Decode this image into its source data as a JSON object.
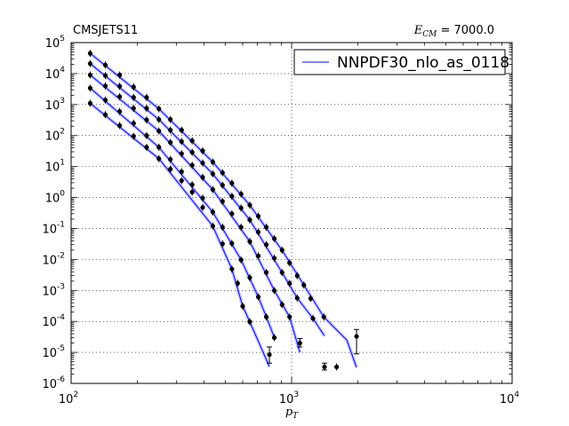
{
  "chart_data": {
    "type": "scatter",
    "title_left": "CMSJETS11",
    "title_right_symbol": "E",
    "title_right_sub": "CM",
    "title_right_value": " = 7000.0",
    "xlabel_symbol": "p",
    "xlabel_sub": "T",
    "ylabel": "",
    "x_scale": "log",
    "y_scale": "log",
    "xlim": [
      100,
      10000
    ],
    "ylim": [
      1e-06,
      100000
    ],
    "x_ticks": [
      {
        "base": "10",
        "exp": "2"
      },
      {
        "base": "10",
        "exp": "3"
      },
      {
        "base": "10",
        "exp": "4"
      }
    ],
    "y_ticks": [
      {
        "base": "10",
        "exp": "5"
      },
      {
        "base": "10",
        "exp": "4"
      },
      {
        "base": "10",
        "exp": "3"
      },
      {
        "base": "10",
        "exp": "2"
      },
      {
        "base": "10",
        "exp": "1"
      },
      {
        "base": "10",
        "exp": "0"
      },
      {
        "base": "10",
        "exp": "-1"
      },
      {
        "base": "10",
        "exp": "-2"
      },
      {
        "base": "10",
        "exp": "-3"
      },
      {
        "base": "10",
        "exp": "-4"
      },
      {
        "base": "10",
        "exp": "-5"
      },
      {
        "base": "10",
        "exp": "-6"
      }
    ],
    "grid": true,
    "legend": {
      "placement": "top-right",
      "entries": [
        {
          "label": "NNPDF30_nlo_as_0118",
          "color": "#0000ff"
        }
      ]
    },
    "theory_color": "#0000ff",
    "band_color": "#9fa2ff",
    "point_color": "#000000",
    "series": [
      {
        "points": [
          [
            122,
            45000
          ],
          [
            143,
            19000
          ],
          [
            166,
            9000
          ],
          [
            192,
            3700
          ],
          [
            220,
            1700
          ],
          [
            250,
            730
          ],
          [
            282,
            330
          ],
          [
            317,
            150
          ],
          [
            354,
            68
          ],
          [
            395,
            32
          ],
          [
            439,
            14
          ],
          [
            486,
            6.3
          ],
          [
            536,
            2.9
          ],
          [
            590,
            1.3
          ],
          [
            646,
            0.57
          ],
          [
            706,
            0.25
          ],
          [
            768,
            0.11
          ],
          [
            835,
            0.047
          ],
          [
            905,
            0.02
          ],
          [
            979,
            0.0078
          ],
          [
            1060,
            0.003
          ],
          [
            1136,
            0.0015
          ],
          [
            1220,
            0.00055
          ],
          [
            1400,
            0.00014
          ],
          [
            1600,
            3.4e-06
          ],
          [
            1780,
            8e-07
          ],
          [
            1970,
            3.3e-05
          ]
        ],
        "errors": [
          [
            1970,
            9e-06,
            5.5e-05
          ]
        ],
        "curve": [
          [
            122,
            45000
          ],
          [
            250,
            730
          ],
          [
            439,
            14
          ],
          [
            646,
            0.57
          ],
          [
            905,
            0.02
          ],
          [
            1136,
            0.0015
          ],
          [
            1400,
            0.00014
          ],
          [
            1780,
            2.5e-05
          ],
          [
            1970,
            3.3e-06
          ]
        ]
      },
      {
        "points": [
          [
            122,
            21000
          ],
          [
            143,
            8600
          ],
          [
            166,
            3900
          ],
          [
            192,
            1700
          ],
          [
            220,
            760
          ],
          [
            250,
            330
          ],
          [
            282,
            150
          ],
          [
            317,
            64
          ],
          [
            354,
            29
          ],
          [
            395,
            13
          ],
          [
            439,
            5.8
          ],
          [
            486,
            2.5
          ],
          [
            536,
            1.1
          ],
          [
            590,
            0.46
          ],
          [
            646,
            0.19
          ],
          [
            706,
            0.077
          ],
          [
            768,
            0.03
          ],
          [
            835,
            0.011
          ],
          [
            905,
            0.0038
          ],
          [
            979,
            0.0017
          ],
          [
            1060,
            0.00057
          ],
          [
            1250,
            0.000125
          ],
          [
            1410,
            3.4e-06
          ]
        ],
        "errors": [
          [
            1410,
            2.7e-06,
            4.5e-06
          ]
        ],
        "curve": [
          [
            122,
            21000
          ],
          [
            250,
            330
          ],
          [
            439,
            5.8
          ],
          [
            646,
            0.19
          ],
          [
            905,
            0.0038
          ],
          [
            1060,
            0.00057
          ],
          [
            1250,
            0.000125
          ],
          [
            1410,
            3.4e-05
          ]
        ]
      },
      {
        "points": [
          [
            122,
            9000
          ],
          [
            143,
            4000
          ],
          [
            166,
            1800
          ],
          [
            192,
            760
          ],
          [
            220,
            320
          ],
          [
            250,
            140
          ],
          [
            282,
            60
          ],
          [
            317,
            26
          ],
          [
            354,
            11
          ],
          [
            395,
            4.5
          ],
          [
            439,
            1.8
          ],
          [
            486,
            0.75
          ],
          [
            536,
            0.3
          ],
          [
            590,
            0.11
          ],
          [
            646,
            0.038
          ],
          [
            706,
            0.013
          ],
          [
            768,
            0.0038
          ],
          [
            835,
            0.00099
          ],
          [
            905,
            0.00035
          ],
          [
            979,
            0.00014
          ],
          [
            1090,
            2e-05
          ]
        ],
        "errors": [
          [
            1090,
            1.5e-05,
            2.8e-05
          ]
        ],
        "curve": [
          [
            122,
            9000
          ],
          [
            250,
            140
          ],
          [
            439,
            1.8
          ],
          [
            646,
            0.038
          ],
          [
            835,
            0.00099
          ],
          [
            979,
            0.00014
          ],
          [
            1090,
            1e-05
          ]
        ]
      },
      {
        "points": [
          [
            122,
            3400
          ],
          [
            143,
            1400
          ],
          [
            166,
            600
          ],
          [
            192,
            250
          ],
          [
            220,
            100
          ],
          [
            250,
            42
          ],
          [
            282,
            17
          ],
          [
            317,
            6.8
          ],
          [
            354,
            2.6
          ],
          [
            395,
            0.96
          ],
          [
            439,
            0.34
          ],
          [
            486,
            0.11
          ],
          [
            536,
            0.033
          ],
          [
            590,
            0.0097
          ],
          [
            646,
            0.0026
          ],
          [
            706,
            0.00062
          ],
          [
            768,
            0.00014
          ],
          [
            835,
            3e-05
          ]
        ],
        "errors": [],
        "curve": [
          [
            122,
            3400
          ],
          [
            250,
            42
          ],
          [
            439,
            0.34
          ],
          [
            590,
            0.0097
          ],
          [
            706,
            0.00062
          ],
          [
            768,
            0.00014
          ],
          [
            835,
            3e-05
          ]
        ]
      },
      {
        "points": [
          [
            122,
            1100
          ],
          [
            143,
            470
          ],
          [
            166,
            210
          ],
          [
            192,
            95
          ],
          [
            220,
            42
          ],
          [
            250,
            18
          ],
          [
            282,
            8.2
          ],
          [
            317,
            3.5
          ],
          [
            354,
            1.5
          ],
          [
            395,
            0.48
          ],
          [
            439,
            0.12
          ],
          [
            486,
            0.032
          ],
          [
            536,
            0.0049
          ],
          [
            569,
            0.0017
          ],
          [
            600,
            0.00031
          ],
          [
            646,
            9.8e-05
          ],
          [
            793,
            8.5e-06
          ]
        ],
        "errors": [
          [
            793,
            4.5e-06,
            1.5e-05
          ]
        ],
        "curve": [
          [
            122,
            1100
          ],
          [
            250,
            18
          ],
          [
            439,
            0.12
          ],
          [
            536,
            0.0049
          ],
          [
            600,
            0.00031
          ],
          [
            646,
            9.8e-05
          ],
          [
            793,
            3.5e-06
          ]
        ]
      }
    ]
  }
}
